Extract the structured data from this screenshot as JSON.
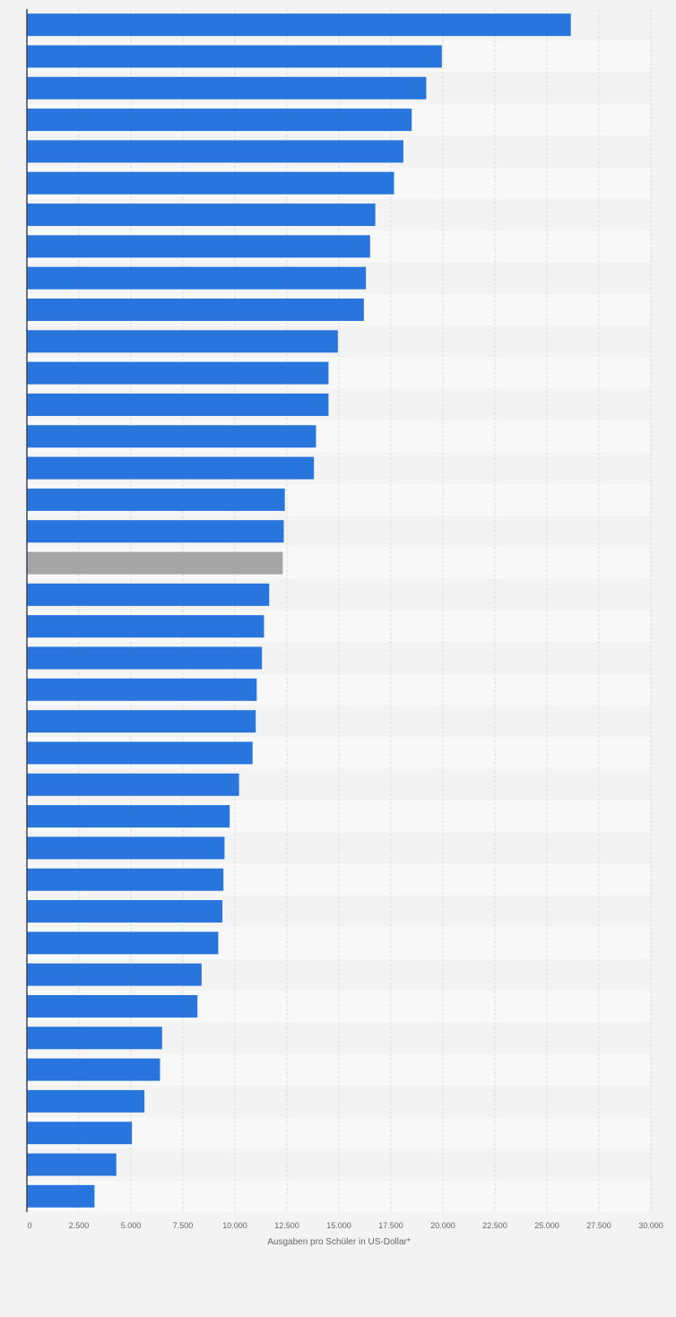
{
  "chart_data": {
    "type": "bar",
    "orientation": "horizontal",
    "title": "",
    "xlabel": "Ausgaben pro Schüler in US-Dollar*",
    "ylabel": "",
    "xlim": [
      0,
      30000
    ],
    "x_ticks": [
      0,
      2500,
      5000,
      7500,
      10000,
      12500,
      15000,
      17500,
      20000,
      22500,
      25000,
      27500,
      30000
    ],
    "x_tick_labels": [
      "0",
      "2.500",
      "5.000",
      "7.500",
      "10.000",
      "12.500",
      "15.000",
      "17.500",
      "20.000",
      "22.500",
      "25.000",
      "27.500",
      "30.000"
    ],
    "grid": "vertical",
    "legend": "none",
    "category_labels_visible": false,
    "values": [
      26150,
      19950,
      19200,
      18500,
      18100,
      17650,
      16750,
      16500,
      16300,
      16200,
      14950,
      14500,
      14500,
      13900,
      13800,
      12400,
      12350,
      12300,
      11650,
      11400,
      11300,
      11050,
      11000,
      10850,
      10200,
      9750,
      9500,
      9450,
      9400,
      9200,
      8400,
      8200,
      6500,
      6400,
      5650,
      5050,
      4300,
      3250
    ],
    "highlight_index": 17,
    "colors": {
      "bar": "#2876dd",
      "highlight": "#a6a6a6",
      "band_dark": "#f3f3f3",
      "band_light": "#f8f8f8",
      "grid": "#dcdcdc",
      "axis": "#3d4654"
    }
  }
}
